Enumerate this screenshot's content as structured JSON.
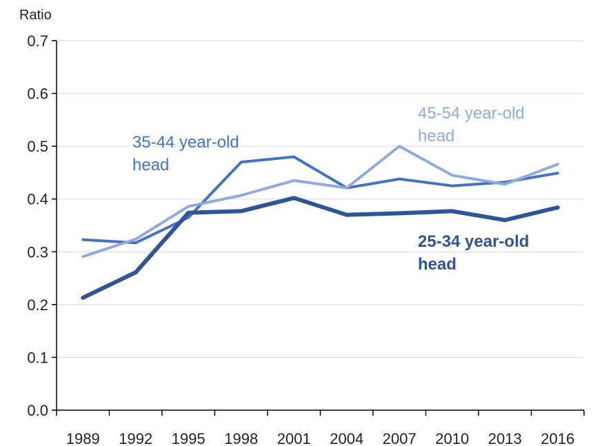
{
  "chart_data": {
    "type": "line",
    "title": "",
    "xlabel": "",
    "ylabel": "Ratio",
    "x": [
      "1989",
      "1992",
      "1995",
      "1998",
      "2001",
      "2004",
      "2007",
      "2010",
      "2013",
      "2016"
    ],
    "ylim": [
      0,
      0.7
    ],
    "yticks": [
      "0.0",
      "0.1",
      "0.2",
      "0.3",
      "0.4",
      "0.5",
      "0.6",
      "0.7"
    ],
    "grid": true,
    "series": [
      {
        "name": "35-44 year-old head",
        "label_lines": [
          "35-44 year-old",
          "head"
        ],
        "color": "#4472c4",
        "bold": false,
        "values": [
          0.323,
          0.317,
          0.365,
          0.47,
          0.48,
          0.421,
          0.438,
          0.425,
          0.432,
          0.449
        ]
      },
      {
        "name": "45-54 year-old head",
        "label_lines": [
          "45-54 year-old",
          "head"
        ],
        "color": "#8faadc",
        "bold": false,
        "values": [
          0.291,
          0.324,
          0.386,
          0.407,
          0.435,
          0.421,
          0.5,
          0.445,
          0.428,
          0.466
        ]
      },
      {
        "name": "25-34 year-old head",
        "label_lines": [
          "25-34 year-old",
          "head"
        ],
        "color": "#2f5597",
        "bold": true,
        "values": [
          0.213,
          0.261,
          0.374,
          0.377,
          0.402,
          0.37,
          0.373,
          0.377,
          0.36,
          0.384
        ]
      }
    ]
  }
}
